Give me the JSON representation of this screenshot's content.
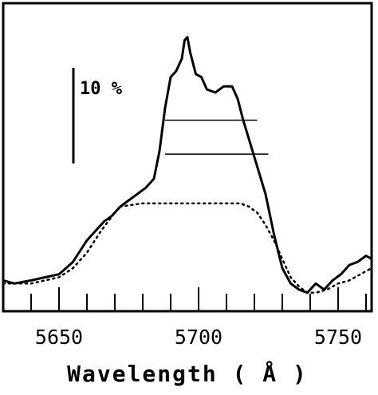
{
  "chart_data": {
    "type": "line",
    "title": "",
    "xlabel": "Wavelength ( Å )",
    "ylabel": "",
    "xlim": [
      5630,
      5762
    ],
    "ylim": [
      0,
      100
    ],
    "x_ticks": [
      5650,
      5700,
      5750
    ],
    "x_tick_labels": [
      "5650",
      "5700",
      "5750"
    ],
    "scale_bar": {
      "label": "10 %",
      "low": 48,
      "high": 79
    },
    "series": [
      {
        "style": "solid",
        "x": [
          5630,
          5634,
          5640,
          5645,
          5650,
          5655,
          5660,
          5663,
          5666,
          5669,
          5672,
          5675,
          5678,
          5681,
          5684,
          5686,
          5688,
          5690,
          5692,
          5694,
          5695,
          5696,
          5697,
          5699,
          5701,
          5703,
          5706,
          5709,
          5712,
          5714,
          5716,
          5718,
          5721,
          5724,
          5727,
          5730,
          5733,
          5736,
          5739,
          5742,
          5745,
          5748,
          5751,
          5754,
          5757,
          5760,
          5762
        ],
        "y": [
          10,
          9,
          10,
          11,
          12,
          16,
          23,
          26,
          29,
          31,
          34,
          36,
          38,
          40,
          43,
          52,
          66,
          76,
          78,
          82,
          88,
          89,
          84,
          77,
          76,
          72,
          71,
          73,
          73,
          69,
          62,
          56,
          47,
          38,
          25,
          14,
          9,
          7,
          6,
          9,
          7,
          10,
          12,
          15,
          16,
          18,
          17
        ]
      },
      {
        "style": "dotted",
        "x": [
          5630,
          5640,
          5650,
          5655,
          5660,
          5665,
          5670,
          5672,
          5680,
          5690,
          5700,
          5710,
          5715,
          5718,
          5721,
          5724,
          5727,
          5730,
          5733,
          5736,
          5739,
          5742,
          5746,
          5750,
          5754,
          5758,
          5762
        ],
        "y": [
          9,
          9,
          11,
          14,
          19,
          26,
          32,
          34,
          35,
          35,
          35,
          35,
          35,
          34,
          32,
          28,
          23,
          17,
          11,
          8,
          6,
          6,
          7,
          9,
          10,
          12,
          14
        ]
      }
    ],
    "hlines": [
      {
        "y": 62,
        "x": [
          5688,
          5721
        ]
      },
      {
        "y": 51,
        "x": [
          5688,
          5725
        ]
      }
    ]
  }
}
